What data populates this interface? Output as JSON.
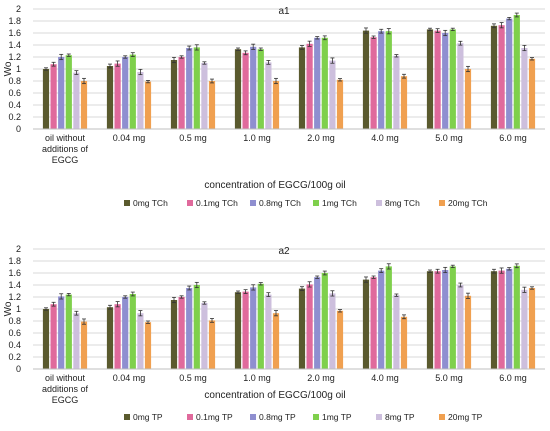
{
  "chart_data": [
    {
      "type": "bar",
      "title": "a1",
      "xlabel": "concentration of EGCG/100g oil",
      "ylabel": "Wo",
      "ylim": [
        0,
        2
      ],
      "yticks": [
        "0",
        "0.2",
        "0.4",
        "0.6",
        "0.8",
        "1",
        "1.2",
        "1.4",
        "1.6",
        "1.8",
        "2"
      ],
      "grid": true,
      "legend_position": "bottom",
      "categories": [
        "oil without additions of EGCG",
        "0.04 mg",
        "0.5 mg",
        "1.0 mg",
        "2.0 mg",
        "4.0 mg",
        "5.0 mg",
        "6.0 mg"
      ],
      "series": [
        {
          "name": "0mg TCh",
          "color": "#5a5a2e",
          "values": [
            1.0,
            1.05,
            1.15,
            1.33,
            1.36,
            1.64,
            1.66,
            1.72
          ]
        },
        {
          "name": "0.1mg TCh",
          "color": "#e06a9c",
          "values": [
            1.08,
            1.09,
            1.2,
            1.27,
            1.42,
            1.53,
            1.64,
            1.73
          ]
        },
        {
          "name": "0.8mg TCh",
          "color": "#8f8fd0",
          "values": [
            1.2,
            1.2,
            1.35,
            1.37,
            1.52,
            1.63,
            1.6,
            1.84
          ]
        },
        {
          "name": "1mg TCh",
          "color": "#7fd04c",
          "values": [
            1.23,
            1.24,
            1.36,
            1.33,
            1.52,
            1.63,
            1.66,
            1.9
          ]
        },
        {
          "name": "8mg TCh",
          "color": "#cdbfdd",
          "values": [
            0.94,
            0.95,
            1.1,
            1.11,
            1.14,
            1.22,
            1.43,
            1.35
          ]
        },
        {
          "name": "20mg TCh",
          "color": "#f0a050",
          "values": [
            0.8,
            0.79,
            0.8,
            0.8,
            0.82,
            0.88,
            1.0,
            1.17
          ]
        }
      ]
    },
    {
      "type": "bar",
      "title": "a2",
      "xlabel": "concentration of EGCG/100g oil",
      "ylabel": "Wo",
      "ylim": [
        0,
        2
      ],
      "yticks": [
        "0",
        "0.2",
        "0.4",
        "0.6",
        "0.8",
        "1",
        "1.2",
        "1.4",
        "1.6",
        "1.8",
        "2"
      ],
      "grid": true,
      "legend_position": "bottom",
      "categories": [
        "oil without additions of EGCG",
        "0.04 mg",
        "0.5 mg",
        "1.0 mg",
        "2.0 mg",
        "4.0 mg",
        "5.0 mg",
        "6.0 mg"
      ],
      "series": [
        {
          "name": "0mg TP",
          "color": "#5a5a2e",
          "values": [
            1.0,
            1.03,
            1.15,
            1.28,
            1.34,
            1.49,
            1.63,
            1.63
          ]
        },
        {
          "name": "0.1mg TP",
          "color": "#e06a9c",
          "values": [
            1.08,
            1.08,
            1.2,
            1.29,
            1.41,
            1.53,
            1.63,
            1.64
          ]
        },
        {
          "name": "0.8mg TP",
          "color": "#8f8fd0",
          "values": [
            1.21,
            1.2,
            1.35,
            1.36,
            1.53,
            1.64,
            1.65,
            1.67
          ]
        },
        {
          "name": "1mg TP",
          "color": "#7fd04c",
          "values": [
            1.24,
            1.25,
            1.4,
            1.42,
            1.6,
            1.71,
            1.71,
            1.72
          ]
        },
        {
          "name": "8mg TP",
          "color": "#cdbfdd",
          "values": [
            0.93,
            0.93,
            1.1,
            1.24,
            1.26,
            1.23,
            1.4,
            1.32
          ]
        },
        {
          "name": "20mg TP",
          "color": "#f0a050",
          "values": [
            0.79,
            0.78,
            0.81,
            0.93,
            0.97,
            0.87,
            1.22,
            1.35
          ]
        }
      ]
    }
  ]
}
